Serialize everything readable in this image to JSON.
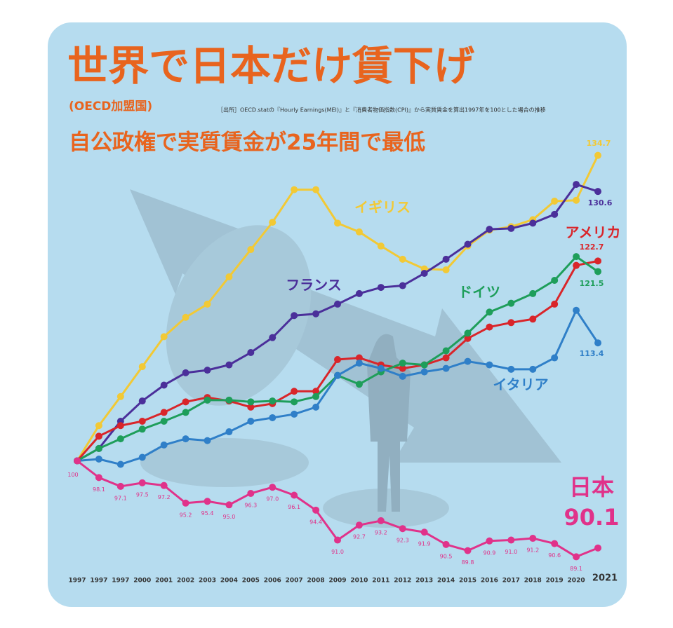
{
  "chart_data": {
    "type": "line",
    "title": "世界で日本だけ賃下げ",
    "note": "(OECD加盟国)",
    "source": "［出所］OECD.statの『Hourly Earnings(MEI)』と『消費者物価指数(CPI)』から実質賃金を算出1997年を100とした場合の推移",
    "subtitle": "自公政権で実質賃金が25年間で最低",
    "categories": [
      "1997",
      "1997",
      "1997",
      "2000",
      "2001",
      "2002",
      "2003",
      "2004",
      "2005",
      "2006",
      "2007",
      "2008",
      "2009",
      "2010",
      "2011",
      "2012",
      "2013",
      "2014",
      "2015",
      "2016",
      "2017",
      "2018",
      "2019",
      "2020",
      "2021"
    ],
    "ylim": [
      83.4,
      149.8
    ],
    "series": [
      {
        "name": "イギリス",
        "color": "#f2c935",
        "values": [
          100,
          104.0,
          107.3,
          110.7,
          114.1,
          116.3,
          117.8,
          120.9,
          124.0,
          127.1,
          130.8,
          130.8,
          127.0,
          126.0,
          124.4,
          122.9,
          121.8,
          121.7,
          124.4,
          126.2,
          126.6,
          127.4,
          129.5,
          129.6,
          134.7
        ],
        "value_labels": [
          null,
          null,
          null,
          null,
          null,
          null,
          null,
          null,
          null,
          null,
          null,
          null,
          null,
          null,
          null,
          null,
          null,
          null,
          null,
          null,
          null,
          null,
          null,
          null,
          "134.7"
        ]
      },
      {
        "name": "フランス",
        "color": "#4b2f9a",
        "values": [
          100,
          101.4,
          104.5,
          106.8,
          108.6,
          110.0,
          110.3,
          110.9,
          112.3,
          114.0,
          116.5,
          116.7,
          117.8,
          119.0,
          119.7,
          119.9,
          121.3,
          122.9,
          124.6,
          126.3,
          126.4,
          127.0,
          128.0,
          131.4,
          130.6
        ],
        "value_labels": [
          null,
          null,
          null,
          null,
          null,
          null,
          null,
          null,
          null,
          null,
          null,
          null,
          null,
          null,
          null,
          null,
          null,
          null,
          null,
          null,
          null,
          null,
          null,
          null,
          "130.6"
        ]
      },
      {
        "name": "アメリカ",
        "color": "#d9252a",
        "values": [
          100,
          102.8,
          104.0,
          104.5,
          105.5,
          106.7,
          107.2,
          106.8,
          106.1,
          106.5,
          107.9,
          107.9,
          111.5,
          111.7,
          110.9,
          110.5,
          110.9,
          111.7,
          113.9,
          115.2,
          115.7,
          116.1,
          117.8,
          122.2,
          122.7
        ],
        "value_labels": [
          null,
          null,
          null,
          null,
          null,
          null,
          null,
          null,
          null,
          null,
          null,
          null,
          null,
          null,
          null,
          null,
          null,
          null,
          null,
          null,
          null,
          null,
          null,
          null,
          "122.7"
        ]
      },
      {
        "name": "ドイツ",
        "color": "#1e9e5a",
        "values": [
          100,
          101.4,
          102.5,
          103.6,
          104.5,
          105.5,
          106.9,
          106.9,
          106.7,
          106.8,
          106.7,
          107.3,
          109.7,
          108.7,
          110.1,
          111.1,
          110.9,
          112.5,
          114.5,
          116.9,
          117.9,
          119.0,
          120.5,
          123.2,
          121.5
        ],
        "value_labels": [
          null,
          null,
          null,
          null,
          null,
          null,
          null,
          null,
          null,
          null,
          null,
          null,
          null,
          null,
          null,
          null,
          null,
          null,
          null,
          null,
          null,
          null,
          null,
          null,
          "121.5"
        ]
      },
      {
        "name": "イタリア",
        "color": "#2f7fc8",
        "values": [
          100,
          100.2,
          99.6,
          100.4,
          101.8,
          102.5,
          102.3,
          103.3,
          104.5,
          104.9,
          105.3,
          106.1,
          109.7,
          111.1,
          110.5,
          109.6,
          110.1,
          110.5,
          111.3,
          110.9,
          110.4,
          110.4,
          111.7,
          117.1,
          113.4
        ],
        "value_labels": [
          null,
          null,
          null,
          null,
          null,
          null,
          null,
          null,
          null,
          null,
          null,
          null,
          null,
          null,
          null,
          null,
          null,
          null,
          null,
          null,
          null,
          null,
          null,
          null,
          "113.4"
        ]
      },
      {
        "name": "日本",
        "color": "#e0328a",
        "values": [
          100,
          98.1,
          97.1,
          97.5,
          97.2,
          95.2,
          95.4,
          95.0,
          96.3,
          97.0,
          96.1,
          94.4,
          91.0,
          92.7,
          93.2,
          92.3,
          91.9,
          90.5,
          89.8,
          90.9,
          91.0,
          91.2,
          90.6,
          89.1,
          90.1
        ],
        "value_labels": [
          "100",
          "98.1",
          "97.1",
          "97.5",
          "97.2",
          "95.2",
          "95.4",
          "95.0",
          "96.3",
          "97.0",
          "96.1",
          "94.4",
          "91.0",
          "92.7",
          "93.2",
          "92.3",
          "91.9",
          "90.5",
          "89.8",
          "90.9",
          "91.0",
          "91.2",
          "90.6",
          "89.1",
          "90.1"
        ]
      }
    ]
  }
}
